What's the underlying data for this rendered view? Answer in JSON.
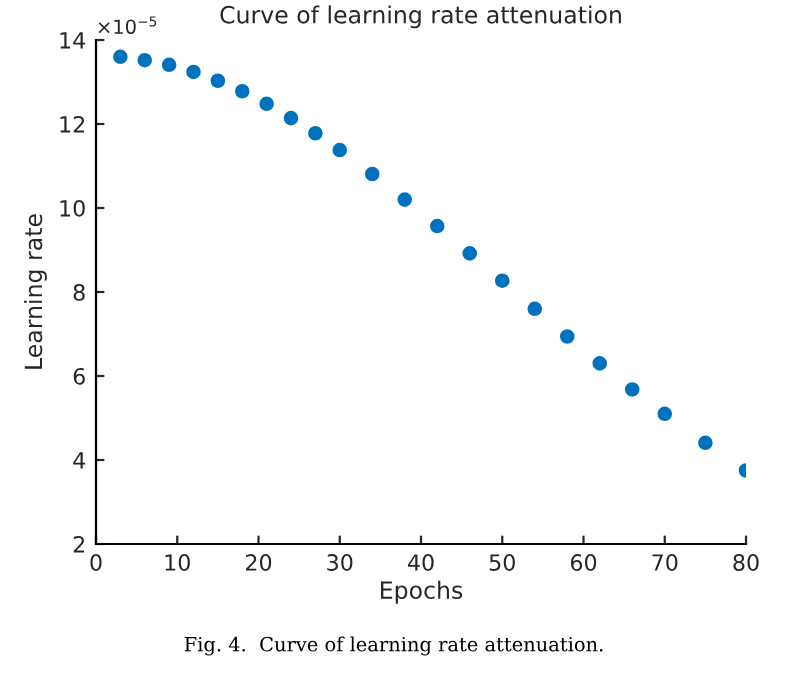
{
  "chart_data": {
    "type": "scatter",
    "title": "Curve of learning rate attenuation",
    "xlabel": "Epochs",
    "ylabel": "Learning rate",
    "x": [
      3,
      6,
      9,
      12,
      15,
      18,
      21,
      24,
      27,
      30,
      34,
      38,
      42,
      46,
      50,
      54,
      58,
      62,
      66,
      70,
      75,
      80
    ],
    "series": [
      {
        "color": "#0072bd",
        "values": [
          13.6,
          13.52,
          13.41,
          13.24,
          13.03,
          12.78,
          12.48,
          12.14,
          11.78,
          11.38,
          10.81,
          10.2,
          9.57,
          8.92,
          8.27,
          7.6,
          6.94,
          6.3,
          5.68,
          5.1,
          4.41,
          3.75
        ]
      }
    ],
    "xlim": [
      0,
      80
    ],
    "xticks": [
      0,
      10,
      20,
      30,
      40,
      50,
      60,
      70,
      80
    ],
    "ylim": [
      2,
      14
    ],
    "yticks": [
      2,
      4,
      6,
      8,
      10,
      12,
      14
    ],
    "marker": "circle",
    "grid": false,
    "legend": false,
    "annotations": [
      "×10$^{−5}$",
      "Fig. 4.  Curve of learning rate attenuation."
    ]
  }
}
